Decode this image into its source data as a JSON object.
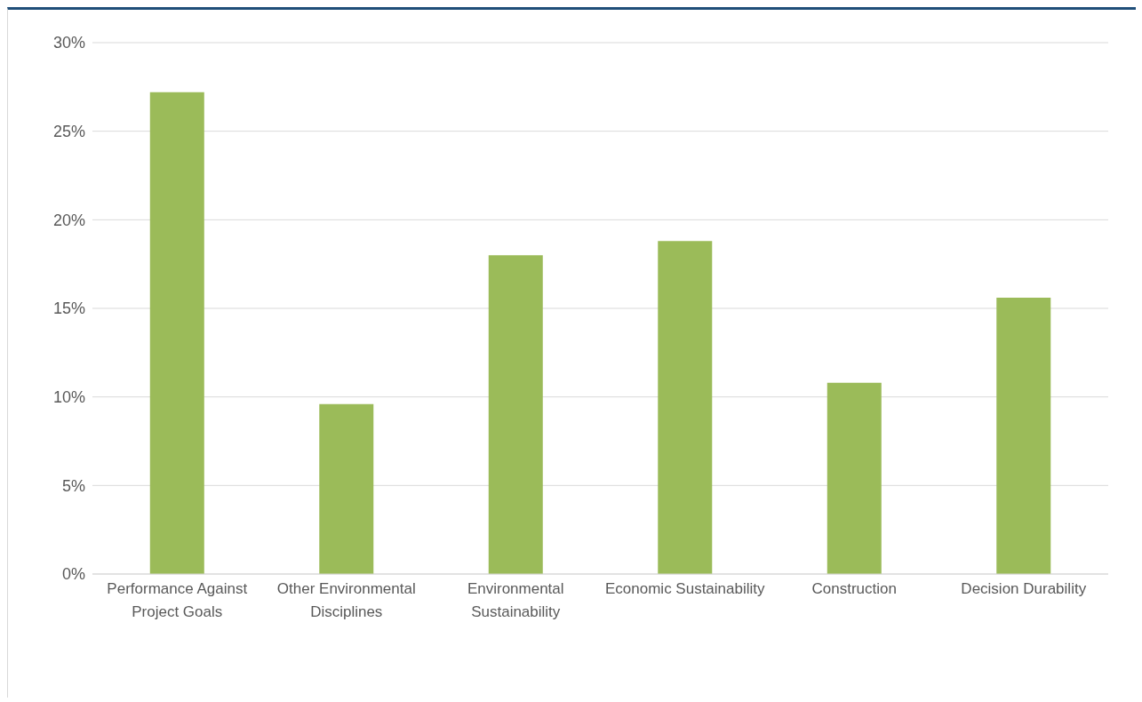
{
  "chart_data": {
    "type": "bar",
    "categories": [
      "Performance Against Project Goals",
      "Other Environmental Disciplines",
      "Environmental Sustainability",
      "Economic Sustainability",
      "Construction",
      "Decision Durability"
    ],
    "values": [
      27.2,
      9.6,
      18.0,
      18.8,
      10.8,
      15.6
    ],
    "color": "#9bbb59",
    "ylim": [
      0,
      30
    ],
    "yticks": [
      {
        "value": 0,
        "label": "0%"
      },
      {
        "value": 5,
        "label": "5%"
      },
      {
        "value": 10,
        "label": "10%"
      },
      {
        "value": 15,
        "label": "15%"
      },
      {
        "value": 20,
        "label": "20%"
      },
      {
        "value": 25,
        "label": "25%"
      },
      {
        "value": 30,
        "label": "30%"
      }
    ],
    "grid": "y"
  }
}
